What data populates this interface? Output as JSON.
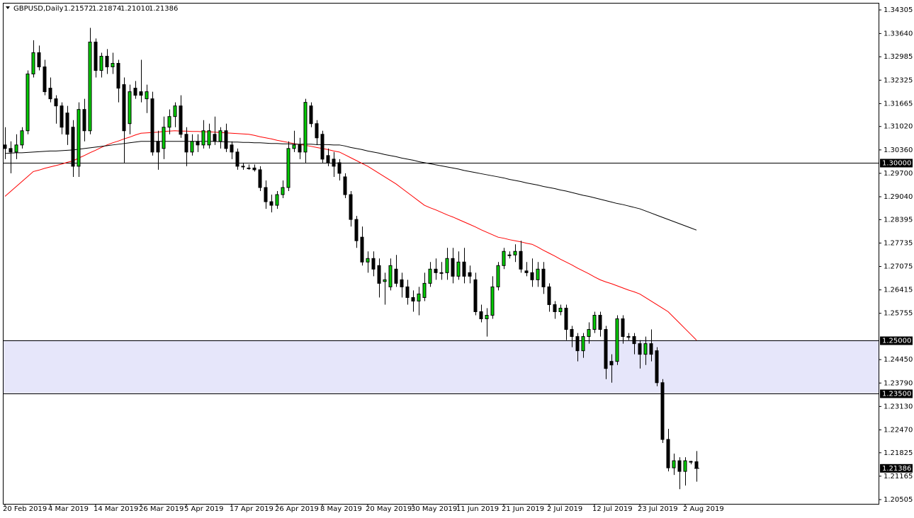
{
  "chart_data": {
    "type": "candlestick",
    "header": {
      "symbol": "GBPUSD,Daily",
      "ohlc": [
        "1.21572",
        "1.21874",
        "1.21010",
        "1.21386"
      ]
    },
    "categories": [
      "20 Feb 2019",
      null,
      null,
      null,
      null,
      null,
      null,
      null,
      "4 Mar 2019",
      null,
      null,
      null,
      null,
      null,
      null,
      null,
      "14 Mar 2019",
      null,
      null,
      null,
      null,
      null,
      null,
      null,
      "26 Mar 2019",
      null,
      null,
      null,
      null,
      null,
      null,
      null,
      "5 Apr 2019",
      null,
      null,
      null,
      null,
      null,
      null,
      null,
      "17 Apr 2019",
      null,
      null,
      null,
      null,
      null,
      null,
      null,
      "26 Apr 2019",
      null,
      null,
      null,
      null,
      null,
      null,
      null,
      "8 May 2019",
      null,
      null,
      null,
      null,
      null,
      null,
      null,
      "20 May 2019",
      null,
      null,
      null,
      null,
      null,
      null,
      null,
      "30 May 2019",
      null,
      null,
      null,
      null,
      null,
      null,
      null,
      "11 Jun 2019",
      null,
      null,
      null,
      null,
      null,
      null,
      null,
      "21 Jun 2019",
      null,
      null,
      null,
      null,
      null,
      null,
      null,
      "2 Jul 2019",
      null,
      null,
      null,
      null,
      null,
      null,
      null,
      "12 Jul 2019",
      null,
      null,
      null,
      null,
      null,
      null,
      null,
      "23 Jul 2019",
      null,
      null,
      null,
      null,
      null,
      null,
      null,
      "2 Aug 2019",
      null,
      null
    ],
    "candles": {
      "up_color": "#00cc00",
      "down_color": "#000000",
      "open": [
        1.305,
        1.304,
        1.303,
        1.305,
        1.309,
        1.325,
        1.331,
        1.327,
        1.321,
        1.318,
        1.316,
        1.314,
        1.31,
        1.299,
        1.315,
        1.309,
        1.334,
        1.326,
        1.33,
        1.327,
        1.328,
        1.322,
        1.311,
        1.321,
        1.32,
        1.318,
        1.318,
        1.306,
        1.304,
        1.31,
        1.313,
        1.316,
        1.308,
        1.303,
        1.306,
        1.305,
        1.305,
        1.308,
        1.306,
        1.309,
        1.305,
        1.303,
        1.299,
        1.2985,
        1.2985,
        1.298,
        1.293,
        1.289,
        1.288,
        1.291,
        1.293,
        1.304,
        1.305,
        1.303,
        1.316,
        1.311,
        1.308,
        1.302,
        1.301,
        1.3,
        1.296,
        1.291,
        1.284,
        1.279,
        1.272,
        1.273,
        1.271,
        1.2665,
        1.265,
        1.27,
        1.267,
        1.265,
        1.262,
        1.261,
        1.262,
        1.266,
        1.27,
        1.269,
        1.269,
        1.273,
        1.268,
        1.272,
        1.269,
        1.267,
        1.258,
        1.256,
        1.257,
        1.265,
        1.271,
        1.274,
        1.274,
        1.275,
        1.2695,
        1.269,
        1.267,
        1.27,
        1.265,
        1.26,
        1.258,
        1.259,
        1.253,
        1.251,
        1.247,
        1.251,
        1.253,
        1.257,
        1.253,
        1.244,
        1.244,
        1.256,
        1.251,
        1.251,
        1.249,
        1.246,
        1.249,
        1.247,
        1.238,
        1.222,
        1.214,
        1.216,
        1.213,
        1.2157,
        1.21572
      ],
      "high": [
        1.31,
        1.306,
        1.308,
        1.31,
        1.326,
        1.3345,
        1.333,
        1.329,
        1.324,
        1.319,
        1.317,
        1.316,
        1.312,
        1.317,
        1.318,
        1.338,
        1.335,
        1.331,
        1.332,
        1.331,
        1.329,
        1.324,
        1.322,
        1.323,
        1.329,
        1.322,
        1.32,
        1.309,
        1.313,
        1.315,
        1.317,
        1.319,
        1.31,
        1.308,
        1.308,
        1.312,
        1.311,
        1.313,
        1.31,
        1.311,
        1.306,
        1.304,
        1.3,
        1.2995,
        1.2995,
        1.299,
        1.295,
        1.291,
        1.292,
        1.295,
        1.306,
        1.309,
        1.307,
        1.318,
        1.317,
        1.312,
        1.309,
        1.304,
        1.303,
        1.301,
        1.297,
        1.292,
        1.285,
        1.282,
        1.275,
        1.275,
        1.273,
        1.269,
        1.273,
        1.274,
        1.269,
        1.267,
        1.264,
        1.265,
        1.269,
        1.272,
        1.273,
        1.272,
        1.276,
        1.276,
        1.275,
        1.276,
        1.271,
        1.269,
        1.26,
        1.259,
        1.268,
        1.272,
        1.276,
        1.275,
        1.277,
        1.278,
        1.272,
        1.273,
        1.272,
        1.272,
        1.266,
        1.261,
        1.26,
        1.26,
        1.254,
        1.252,
        1.252,
        1.255,
        1.258,
        1.258,
        1.254,
        1.246,
        1.257,
        1.257,
        1.252,
        1.252,
        1.25,
        1.251,
        1.253,
        1.248,
        1.239,
        1.225,
        1.218,
        1.217,
        1.217,
        1.216,
        1.21874
      ],
      "low": [
        1.301,
        1.297,
        1.301,
        1.304,
        1.308,
        1.324,
        1.326,
        1.319,
        1.317,
        1.311,
        1.308,
        1.305,
        1.296,
        1.296,
        1.306,
        1.308,
        1.324,
        1.324,
        1.325,
        1.325,
        1.317,
        1.3,
        1.308,
        1.318,
        1.317,
        1.314,
        1.302,
        1.298,
        1.301,
        1.308,
        1.31,
        1.307,
        1.299,
        1.302,
        1.303,
        1.304,
        1.304,
        1.305,
        1.304,
        1.303,
        1.301,
        1.298,
        1.298,
        1.298,
        1.2975,
        1.292,
        1.287,
        1.286,
        1.287,
        1.29,
        1.292,
        1.303,
        1.301,
        1.3,
        1.31,
        1.305,
        1.3,
        1.299,
        1.296,
        1.295,
        1.29,
        1.282,
        1.276,
        1.271,
        1.269,
        1.268,
        1.262,
        1.26,
        1.264,
        1.265,
        1.262,
        1.26,
        1.258,
        1.257,
        1.261,
        1.265,
        1.267,
        1.267,
        1.267,
        1.266,
        1.267,
        1.266,
        1.266,
        1.257,
        1.255,
        1.251,
        1.256,
        1.264,
        1.27,
        1.273,
        1.272,
        1.269,
        1.268,
        1.265,
        1.265,
        1.263,
        1.258,
        1.256,
        1.257,
        1.25,
        1.248,
        1.244,
        1.245,
        1.249,
        1.252,
        1.251,
        1.239,
        1.238,
        1.243,
        1.249,
        1.25,
        1.246,
        1.242,
        1.243,
        1.244,
        1.237,
        1.221,
        1.213,
        1.212,
        1.208,
        1.209,
        1.215,
        1.2101
      ],
      "close": [
        1.304,
        1.303,
        1.305,
        1.309,
        1.325,
        1.331,
        1.327,
        1.32,
        1.318,
        1.316,
        1.31,
        1.308,
        1.299,
        1.315,
        1.309,
        1.334,
        1.326,
        1.33,
        1.327,
        1.328,
        1.321,
        1.309,
        1.32,
        1.319,
        1.319,
        1.32,
        1.303,
        1.303,
        1.31,
        1.313,
        1.316,
        1.308,
        1.303,
        1.306,
        1.305,
        1.309,
        1.309,
        1.306,
        1.309,
        1.304,
        1.303,
        1.299,
        1.299,
        1.2985,
        1.298,
        1.293,
        1.289,
        1.288,
        1.291,
        1.293,
        1.304,
        1.305,
        1.303,
        1.317,
        1.311,
        1.307,
        1.301,
        1.3,
        1.299,
        1.297,
        1.291,
        1.284,
        1.278,
        1.272,
        1.273,
        1.27,
        1.266,
        1.267,
        1.271,
        1.266,
        1.265,
        1.262,
        1.261,
        1.263,
        1.266,
        1.27,
        1.269,
        1.269,
        1.273,
        1.268,
        1.272,
        1.268,
        1.268,
        1.258,
        1.256,
        1.257,
        1.265,
        1.271,
        1.275,
        1.274,
        1.275,
        1.27,
        1.269,
        1.267,
        1.27,
        1.265,
        1.26,
        1.258,
        1.259,
        1.253,
        1.251,
        1.247,
        1.251,
        1.253,
        1.257,
        1.253,
        1.242,
        1.243,
        1.256,
        1.251,
        1.251,
        1.249,
        1.246,
        1.249,
        1.246,
        1.238,
        1.222,
        1.214,
        1.216,
        1.213,
        1.216,
        1.2158,
        1.21386
      ]
    },
    "lines": [
      {
        "color": "#ff0000",
        "values": [
          1.2905,
          1.2919,
          1.2933,
          1.2947,
          1.2961,
          1.2975,
          1.2979,
          1.2984,
          1.2988,
          1.2992,
          1.2996,
          1.3001,
          1.3005,
          1.3013,
          1.302,
          1.3028,
          1.3035,
          1.3043,
          1.305,
          1.3056,
          1.3061,
          1.3067,
          1.3072,
          1.3078,
          1.3083,
          1.3084,
          1.3085,
          1.3086,
          1.3088,
          1.3089,
          1.309,
          1.3089,
          1.3089,
          1.3088,
          1.3088,
          1.3087,
          1.3087,
          1.3086,
          1.3085,
          1.3084,
          1.3083,
          1.3082,
          1.3081,
          1.308,
          1.3077,
          1.3073,
          1.307,
          1.3067,
          1.3063,
          1.306,
          1.3057,
          1.3054,
          1.3051,
          1.3049,
          1.3046,
          1.3043,
          1.304,
          1.3037,
          1.3033,
          1.303,
          1.3022,
          1.3014,
          1.3006,
          1.2998,
          1.299,
          1.298,
          1.297,
          1.296,
          1.295,
          1.294,
          1.2928,
          1.2916,
          1.2904,
          1.2892,
          1.288,
          1.2873,
          1.2867,
          1.286,
          1.2853,
          1.2847,
          1.284,
          1.2833,
          1.2826,
          1.2819,
          1.2811,
          1.2804,
          1.2797,
          1.279,
          1.2787,
          1.2783,
          1.278,
          1.2777,
          1.2773,
          1.277,
          1.2762,
          1.2753,
          1.2745,
          1.2737,
          1.2728,
          1.272,
          1.2712,
          1.2703,
          1.2695,
          1.2687,
          1.2678,
          1.267,
          1.2664,
          1.2659,
          1.2653,
          1.2647,
          1.2641,
          1.2636,
          1.263,
          1.262,
          1.261,
          1.26,
          1.259,
          1.258,
          1.2564,
          1.2548,
          1.2532,
          1.2516,
          1.25
        ]
      },
      {
        "color": "#000000",
        "values": [
          1.3026,
          1.3027,
          1.3028,
          1.3028,
          1.3029,
          1.303,
          1.3031,
          1.3032,
          1.3033,
          1.3033,
          1.3034,
          1.3035,
          1.3036,
          1.3038,
          1.304,
          1.3042,
          1.3044,
          1.3046,
          1.3048,
          1.305,
          1.3052,
          1.3054,
          1.3056,
          1.3058,
          1.306,
          1.306,
          1.306,
          1.306,
          1.306,
          1.306,
          1.306,
          1.306,
          1.306,
          1.306,
          1.306,
          1.306,
          1.306,
          1.306,
          1.3059,
          1.3059,
          1.3058,
          1.3058,
          1.3057,
          1.3057,
          1.3056,
          1.3056,
          1.3055,
          1.3054,
          1.3054,
          1.3053,
          1.3053,
          1.3052,
          1.3052,
          1.3052,
          1.3052,
          1.3051,
          1.3051,
          1.3051,
          1.305,
          1.305,
          1.3047,
          1.3043,
          1.304,
          1.3037,
          1.3033,
          1.303,
          1.3027,
          1.3023,
          1.302,
          1.3017,
          1.3013,
          1.301,
          1.3007,
          1.3003,
          1.3,
          1.2997,
          1.2994,
          1.2991,
          1.2988,
          1.2985,
          1.2982,
          1.2978,
          1.2975,
          1.2972,
          1.2969,
          1.2966,
          1.2963,
          1.296,
          1.2957,
          1.2953,
          1.295,
          1.2947,
          1.2943,
          1.294,
          1.2937,
          1.2933,
          1.293,
          1.2927,
          1.2923,
          1.292,
          1.2916,
          1.2912,
          1.2908,
          1.2905,
          1.2901,
          1.2897,
          1.2893,
          1.2889,
          1.2885,
          1.2882,
          1.2878,
          1.2874,
          1.287,
          1.2864,
          1.2858,
          1.2852,
          1.2846,
          1.284,
          1.2834,
          1.2828,
          1.2822,
          1.2816,
          1.281
        ]
      }
    ],
    "zones": [
      {
        "from": 1.235,
        "to": 1.25,
        "color": "#e6e6fa"
      }
    ],
    "hlines": [
      {
        "value": 1.3,
        "label": "1.30000"
      },
      {
        "value": 1.25,
        "label": "1.25000"
      },
      {
        "value": 1.235,
        "label": "1.23500"
      }
    ],
    "last_price": {
      "value": 1.21386,
      "label": "1.21386"
    },
    "ylim": [
      1.20385,
      1.34485
    ],
    "yticks": [
      1.34305,
      {
        "value": 1.3364,
        "label": "1.33640"
      },
      1.32985,
      1.32325,
      1.31665,
      {
        "value": 1.3102,
        "label": "1.31020"
      },
      {
        "value": 1.3036,
        "label": "1.30360"
      },
      {
        "value": 1.297,
        "label": "1.29700"
      },
      {
        "value": 1.2904,
        "label": "1.29040"
      },
      1.28395,
      1.27735,
      1.27075,
      1.26415,
      1.25755,
      {
        "value": 1.2445,
        "label": "1.24450"
      },
      {
        "value": 1.2379,
        "label": "1.23790"
      },
      {
        "value": 1.2313,
        "label": "1.23130"
      },
      {
        "value": 1.2247,
        "label": "1.22470"
      },
      1.21825,
      1.21165,
      1.20505
    ],
    "grid": false
  }
}
